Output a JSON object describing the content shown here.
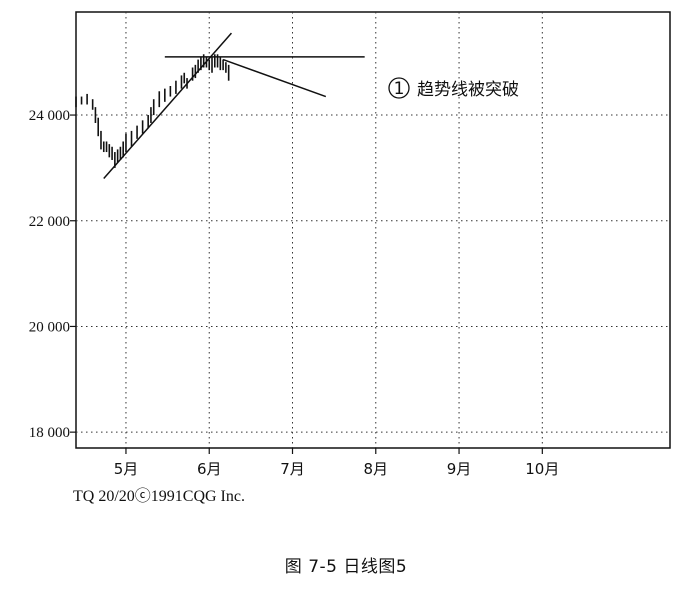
{
  "chart_data": {
    "type": "bar",
    "subtype": "ohlc-daily",
    "title": "",
    "xlabel": "",
    "ylabel": "",
    "ylim": [
      17700,
      25950
    ],
    "y_ticks": [
      18000,
      20000,
      22000,
      24000
    ],
    "y_tick_labels": [
      "18 000",
      "20 000",
      "22 000",
      "24 000"
    ],
    "x_range_days": [
      -18,
      196
    ],
    "x_ticks": [
      {
        "day": 0,
        "label": "5月"
      },
      {
        "day": 30,
        "label": "6月"
      },
      {
        "day": 60,
        "label": "7月"
      },
      {
        "day": 90,
        "label": "8月"
      },
      {
        "day": 120,
        "label": "9月"
      },
      {
        "day": 150,
        "label": "10月"
      }
    ],
    "grid": true,
    "bars": [
      {
        "day": -24,
        "high": 24350,
        "low": 24200
      },
      {
        "day": -22,
        "high": 24300,
        "low": 24150
      },
      {
        "day": -20,
        "high": 24250,
        "low": 24100
      },
      {
        "day": -18,
        "high": 24350,
        "low": 24150
      },
      {
        "day": -16,
        "high": 24350,
        "low": 24200
      },
      {
        "day": -14,
        "high": 24400,
        "low": 24200
      },
      {
        "day": -12,
        "high": 24300,
        "low": 24100
      },
      {
        "day": -11,
        "high": 24150,
        "low": 23850
      },
      {
        "day": -10,
        "high": 23950,
        "low": 23600
      },
      {
        "day": -9,
        "high": 23700,
        "low": 23350
      },
      {
        "day": -8,
        "high": 23500,
        "low": 23300
      },
      {
        "day": -7,
        "high": 23500,
        "low": 23300
      },
      {
        "day": -6,
        "high": 23450,
        "low": 23200
      },
      {
        "day": -5,
        "high": 23400,
        "low": 23150
      },
      {
        "day": -4,
        "high": 23300,
        "low": 23000
      },
      {
        "day": -3,
        "high": 23350,
        "low": 23100
      },
      {
        "day": -2,
        "high": 23400,
        "low": 23150
      },
      {
        "day": -1,
        "high": 23500,
        "low": 23200
      },
      {
        "day": 0,
        "high": 23650,
        "low": 23300
      },
      {
        "day": 2,
        "high": 23700,
        "low": 23400
      },
      {
        "day": 4,
        "high": 23800,
        "low": 23550
      },
      {
        "day": 6,
        "high": 23900,
        "low": 23650
      },
      {
        "day": 8,
        "high": 24000,
        "low": 23750
      },
      {
        "day": 9,
        "high": 24150,
        "low": 23850
      },
      {
        "day": 10,
        "high": 24300,
        "low": 24000
      },
      {
        "day": 12,
        "high": 24450,
        "low": 24150
      },
      {
        "day": 14,
        "high": 24500,
        "low": 24250
      },
      {
        "day": 16,
        "high": 24550,
        "low": 24350
      },
      {
        "day": 18,
        "high": 24650,
        "low": 24400
      },
      {
        "day": 20,
        "high": 24750,
        "low": 24500
      },
      {
        "day": 21,
        "high": 24800,
        "low": 24600
      },
      {
        "day": 22,
        "high": 24700,
        "low": 24500
      },
      {
        "day": 24,
        "high": 24900,
        "low": 24650
      },
      {
        "day": 25,
        "high": 24950,
        "low": 24700
      },
      {
        "day": 26,
        "high": 25050,
        "low": 24800
      },
      {
        "day": 27,
        "high": 25100,
        "low": 24850
      },
      {
        "day": 28,
        "high": 25150,
        "low": 24900
      },
      {
        "day": 29,
        "high": 25100,
        "low": 24900
      },
      {
        "day": 30,
        "high": 25050,
        "low": 24850
      },
      {
        "day": 31,
        "high": 25100,
        "low": 24800
      },
      {
        "day": 32,
        "high": 25150,
        "low": 24900
      },
      {
        "day": 33,
        "high": 25150,
        "low": 24900
      },
      {
        "day": 34,
        "high": 25100,
        "low": 24850
      },
      {
        "day": 35,
        "high": 25050,
        "low": 24850
      },
      {
        "day": 36,
        "high": 25000,
        "low": 24800
      },
      {
        "day": 37,
        "high": 24950,
        "low": 24650
      }
    ],
    "lines": [
      {
        "name": "trendline",
        "from": {
          "day": -8,
          "value": 22800
        },
        "to": {
          "day": 38,
          "value": 25550
        }
      },
      {
        "name": "resistance",
        "from": {
          "day": 14,
          "value": 25100
        },
        "to": {
          "day": 86,
          "value": 25100
        }
      },
      {
        "name": "pointer",
        "from": {
          "day": 35,
          "value": 25050
        },
        "to": {
          "day": 72,
          "value": 24350
        }
      }
    ],
    "annotations": [
      {
        "marker": "1",
        "text": "趋势线被突破"
      }
    ]
  },
  "credit": "TQ 20/20ⓒ1991CQG Inc.",
  "caption": "图   7-5   日线图5"
}
